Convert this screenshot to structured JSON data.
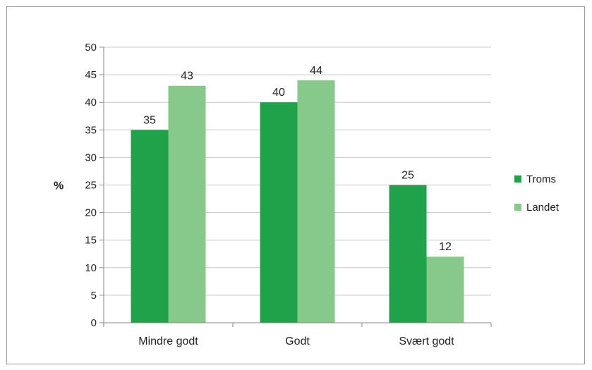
{
  "chart_data": {
    "type": "bar",
    "categories": [
      "Mindre godt",
      "Godt",
      "Svært godt"
    ],
    "series": [
      {
        "name": "Troms",
        "values": [
          35,
          40,
          25
        ],
        "color": "#1fa24a"
      },
      {
        "name": "Landet",
        "values": [
          43,
          44,
          12
        ],
        "color": "#86c98a"
      }
    ],
    "data_labels": [
      [
        "35",
        "40",
        "25"
      ],
      [
        "43",
        "44",
        "12"
      ]
    ],
    "ylabel": "%",
    "xlabel": "",
    "ylim": [
      0,
      50
    ],
    "yticks": [
      0,
      5,
      10,
      15,
      20,
      25,
      30,
      35,
      40,
      45,
      50
    ],
    "grid": true,
    "legend_position": "right"
  }
}
